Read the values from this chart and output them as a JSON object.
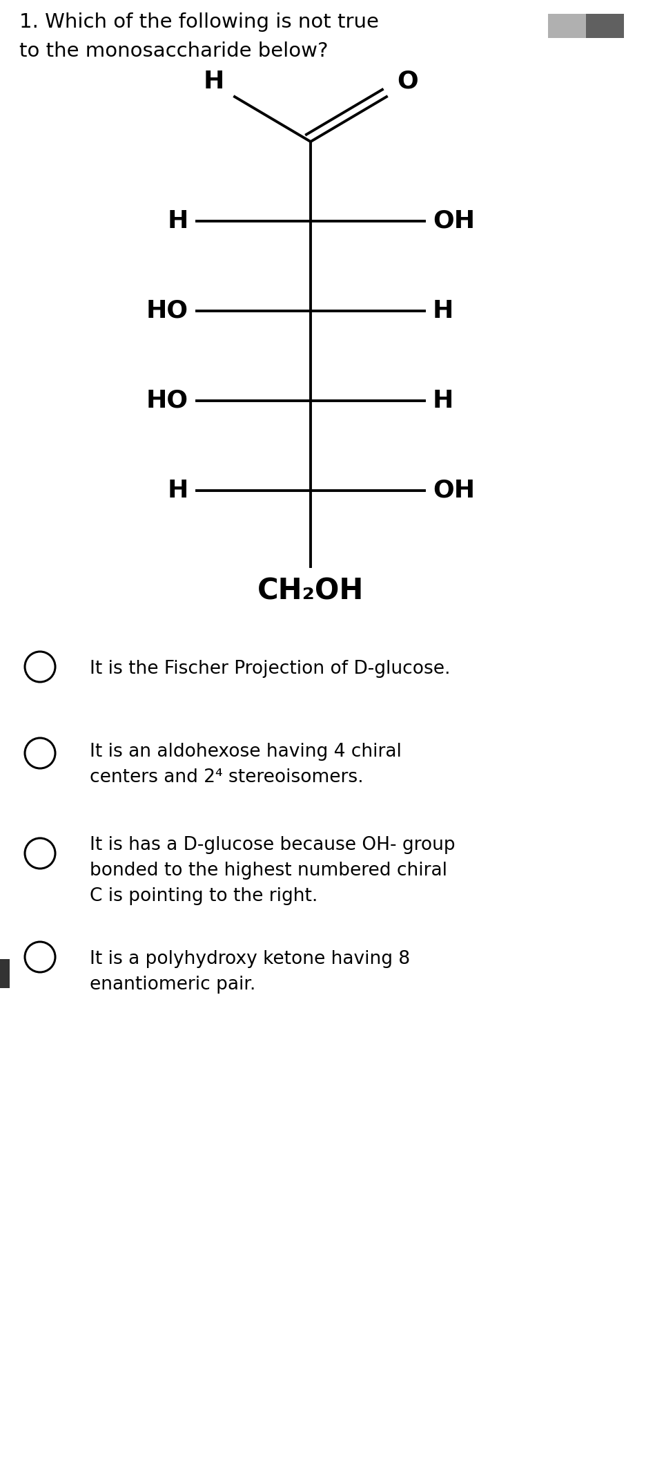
{
  "title_line1": "1. Which of the following is not true",
  "title_line2": "to the monosaccharide below?",
  "bg_color": "#ffffff",
  "text_color": "#000000",
  "options": [
    "It is the Fischer Projection of D-glucose.",
    "It is an aldohexose having 4 chiral\ncenters and 2⁴ stereoisomers.",
    "It is has a D-glucose because OH- group\nbonded to the highest numbered chiral\nC is pointing to the right.",
    "It is a polyhydroxy ketone having 8\nenantiomeric pair."
  ],
  "fig_width": 9.49,
  "fig_height": 21.39,
  "dpi": 100
}
